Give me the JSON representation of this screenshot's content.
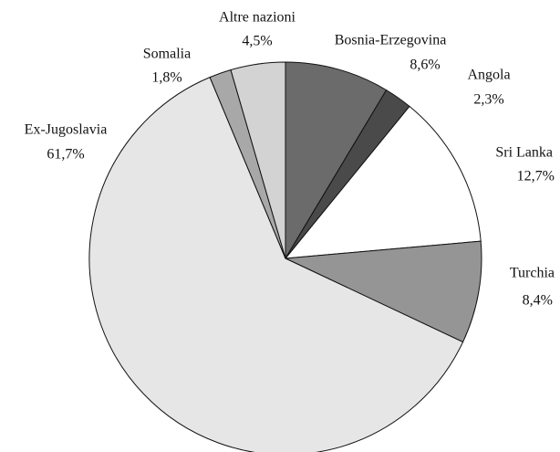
{
  "chart_data": {
    "type": "pie",
    "categories": [
      "Bosnia-Erzegovina",
      "Angola",
      "Sri Lanka",
      "Turchia",
      "Ex-Jugoslavia",
      "Somalia",
      "Altre nazioni"
    ],
    "values": [
      8.6,
      2.3,
      12.7,
      8.4,
      61.7,
      1.8,
      4.5
    ],
    "value_labels": [
      "8,6%",
      "2,3%",
      "12,7%",
      "8,4%",
      "61,7%",
      "1,8%",
      "4,5%"
    ],
    "colors": [
      "#6b6b6b",
      "#4a4a4a",
      "#ffffff",
      "#959595",
      "#e6e6e6",
      "#a8a8a8",
      "#d3d3d3"
    ]
  }
}
